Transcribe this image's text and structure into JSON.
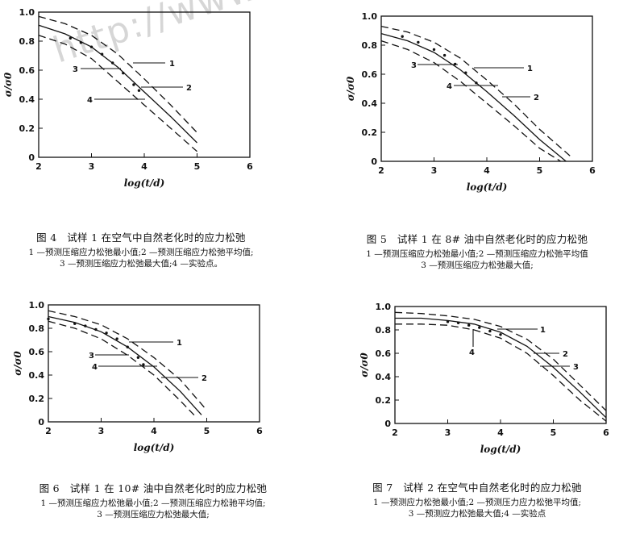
{
  "watermark": "http://www.ixueshu.com",
  "chart_data": [
    {
      "type": "line",
      "id": "fig4",
      "xlabel": "log(t/d)",
      "ylabel": "σ/σ0",
      "xlim": [
        2,
        6
      ],
      "ylim": [
        0,
        1.0
      ],
      "x_ticks": [
        "2",
        "3",
        "4",
        "5",
        "6"
      ],
      "y_ticks": [
        "0",
        "0.2",
        "0.4",
        "0.6",
        "0.8",
        "1.0"
      ],
      "series": [
        {
          "name": "1",
          "style": "dashed",
          "x": [
            2.0,
            2.5,
            3.0,
            3.5,
            4.0,
            4.5,
            5.0
          ],
          "y": [
            0.97,
            0.92,
            0.84,
            0.71,
            0.54,
            0.36,
            0.17
          ]
        },
        {
          "name": "2",
          "style": "solid",
          "x": [
            2.0,
            2.5,
            3.0,
            3.5,
            4.0,
            4.5,
            5.0
          ],
          "y": [
            0.91,
            0.85,
            0.76,
            0.62,
            0.45,
            0.28,
            0.1
          ]
        },
        {
          "name": "3",
          "style": "dashed",
          "x": [
            2.0,
            2.5,
            3.0,
            3.5,
            4.0,
            4.5,
            5.0
          ],
          "y": [
            0.84,
            0.78,
            0.68,
            0.52,
            0.36,
            0.2,
            0.04
          ]
        },
        {
          "name": "4",
          "style": "points",
          "x": [
            2.6,
            2.8,
            3.0,
            3.2,
            3.4,
            3.6,
            3.8,
            3.9
          ],
          "y": [
            0.82,
            0.79,
            0.76,
            0.71,
            0.65,
            0.58,
            0.5,
            0.46
          ]
        }
      ],
      "callouts": [
        "1",
        "2",
        "3",
        "4"
      ]
    },
    {
      "type": "line",
      "id": "fig5",
      "xlabel": "log(t/d)",
      "ylabel": "σ/σ0",
      "xlim": [
        2,
        6
      ],
      "ylim": [
        0,
        1.0
      ],
      "x_ticks": [
        "2",
        "3",
        "4",
        "5",
        "6"
      ],
      "y_ticks": [
        "0",
        "0.2",
        "0.4",
        "0.6",
        "0.8",
        "1.0"
      ],
      "series": [
        {
          "name": "1",
          "style": "dashed",
          "x": [
            2.0,
            2.5,
            3.0,
            3.5,
            4.0,
            4.5,
            5.0,
            5.6
          ],
          "y": [
            0.93,
            0.89,
            0.82,
            0.71,
            0.56,
            0.4,
            0.22,
            0.03
          ]
        },
        {
          "name": "2",
          "style": "solid",
          "x": [
            2.0,
            2.5,
            3.0,
            3.5,
            4.0,
            4.5,
            5.0,
            5.5
          ],
          "y": [
            0.88,
            0.83,
            0.75,
            0.63,
            0.48,
            0.32,
            0.15,
            0.0
          ]
        },
        {
          "name": "3",
          "style": "dashed",
          "x": [
            2.0,
            2.5,
            3.0,
            3.5,
            4.0,
            4.5,
            5.0,
            5.4
          ],
          "y": [
            0.83,
            0.77,
            0.68,
            0.55,
            0.4,
            0.25,
            0.09,
            0.0
          ]
        },
        {
          "name": "4",
          "style": "points",
          "x": [
            2.4,
            2.7,
            3.0,
            3.2,
            3.4,
            3.6,
            3.8
          ],
          "y": [
            0.86,
            0.82,
            0.77,
            0.73,
            0.67,
            0.61,
            0.54
          ]
        }
      ],
      "callouts": [
        "1",
        "2",
        "3",
        "4"
      ]
    },
    {
      "type": "line",
      "id": "fig6",
      "xlabel": "log(t/d)",
      "ylabel": "σ/σ0",
      "xlim": [
        2,
        6
      ],
      "ylim": [
        0,
        1.0
      ],
      "x_ticks": [
        "2",
        "3",
        "4",
        "5",
        "6"
      ],
      "y_ticks": [
        "0",
        "0.2",
        "0.4",
        "0.6",
        "0.8",
        "1.0"
      ],
      "series": [
        {
          "name": "1",
          "style": "dashed",
          "x": [
            2.0,
            2.5,
            3.0,
            3.5,
            4.0,
            4.5,
            5.0
          ],
          "y": [
            0.95,
            0.9,
            0.83,
            0.71,
            0.55,
            0.36,
            0.1
          ]
        },
        {
          "name": "2",
          "style": "solid",
          "x": [
            2.0,
            2.5,
            3.0,
            3.5,
            4.0,
            4.5,
            4.9
          ],
          "y": [
            0.9,
            0.85,
            0.77,
            0.64,
            0.47,
            0.26,
            0.06
          ]
        },
        {
          "name": "3",
          "style": "dashed",
          "x": [
            2.0,
            2.5,
            3.0,
            3.5,
            4.0,
            4.5,
            4.8
          ],
          "y": [
            0.86,
            0.8,
            0.71,
            0.57,
            0.4,
            0.18,
            0.04
          ]
        },
        {
          "name": "4",
          "style": "points",
          "x": [
            2.0,
            2.5,
            2.7,
            2.9,
            3.1,
            3.3,
            3.5,
            3.7,
            3.8
          ],
          "y": [
            0.88,
            0.84,
            0.82,
            0.79,
            0.76,
            0.71,
            0.64,
            0.55,
            0.49
          ]
        }
      ],
      "callouts": [
        "1",
        "2",
        "3",
        "4"
      ]
    },
    {
      "type": "line",
      "id": "fig7",
      "xlabel": "log(t/d)",
      "ylabel": "σ/σ0",
      "xlim": [
        2,
        6
      ],
      "ylim": [
        0,
        1.0
      ],
      "x_ticks": [
        "2",
        "3",
        "4",
        "5",
        "6"
      ],
      "y_ticks": [
        "0",
        "0.2",
        "0.4",
        "0.6",
        "0.8",
        "1.0"
      ],
      "series": [
        {
          "name": "1",
          "style": "dashed",
          "x": [
            2.0,
            2.5,
            3.0,
            3.5,
            4.0,
            4.5,
            5.0,
            5.5,
            6.0
          ],
          "y": [
            0.95,
            0.94,
            0.92,
            0.89,
            0.83,
            0.72,
            0.55,
            0.33,
            0.11
          ]
        },
        {
          "name": "2",
          "style": "solid",
          "x": [
            2.0,
            2.5,
            3.0,
            3.5,
            4.0,
            4.5,
            5.0,
            5.5,
            6.0
          ],
          "y": [
            0.9,
            0.9,
            0.88,
            0.85,
            0.78,
            0.66,
            0.48,
            0.27,
            0.05
          ]
        },
        {
          "name": "3",
          "style": "dashed",
          "x": [
            2.0,
            2.5,
            3.0,
            3.5,
            4.0,
            4.5,
            5.0,
            5.5,
            6.0
          ],
          "y": [
            0.85,
            0.85,
            0.84,
            0.8,
            0.73,
            0.6,
            0.41,
            0.2,
            0.02
          ]
        },
        {
          "name": "4",
          "style": "points",
          "x": [
            3.0,
            3.2,
            3.4,
            3.6,
            3.8,
            4.0
          ],
          "y": [
            0.87,
            0.86,
            0.84,
            0.82,
            0.79,
            0.76
          ]
        }
      ],
      "callouts": [
        "1",
        "2",
        "3",
        "4"
      ]
    }
  ],
  "captions": {
    "fig4": {
      "title": "图 4　试样 1 在空气中自然老化时的应力松弛",
      "lines": [
        "1 —预测压缩应力松弛最小值;2 —预测压缩应力松弛平均值;",
        "3 —预测压缩应力松弛最大值;4 —实验点。"
      ]
    },
    "fig5": {
      "title": "图 5　试样 1 在 8# 油中自然老化时的应力松弛",
      "lines": [
        "1 —预测压缩应力松弛最小值;2 —预测压缩应力松弛平均值",
        "3 —预测压缩应力松弛最大值;"
      ]
    },
    "fig6": {
      "title": "图 6　试样 1 在 10# 油中自然老化时的应力松弛",
      "lines": [
        "1 —预测压缩应力松弛最小值;2 —预测压缩应力松驰平均值;",
        "3 —预测压缩应力松弛最大值;"
      ]
    },
    "fig7": {
      "title": "图 7　试样 2 在空气中自然老化时的应力松驰",
      "lines": [
        "1 —预测应力松弛最小值;2 —预测压力应力松弛平均值;",
        "3 —预测应力松弛最大值;4 —实验点"
      ]
    }
  }
}
